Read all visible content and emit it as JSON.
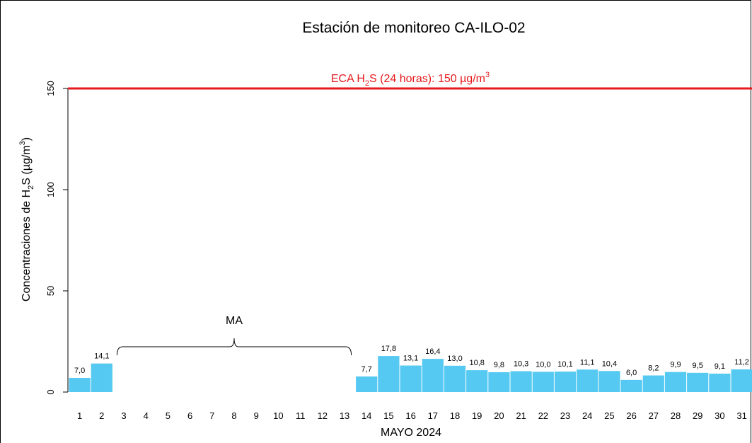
{
  "chart_data": {
    "type": "bar",
    "title": "Estación de monitoreo  CA-ILO-02",
    "x_label": "MAYO 2024",
    "y_label": [
      "Concentraciones de H",
      "2",
      "S (µg/m",
      "3",
      ")"
    ],
    "categories": [
      "1",
      "2",
      "3",
      "4",
      "5",
      "6",
      "7",
      "8",
      "9",
      "10",
      "11",
      "12",
      "13",
      "14",
      "15",
      "16",
      "17",
      "18",
      "19",
      "20",
      "21",
      "22",
      "23",
      "24",
      "25",
      "26",
      "27",
      "28",
      "29",
      "30",
      "31"
    ],
    "values": [
      7.0,
      14.1,
      null,
      null,
      null,
      null,
      null,
      null,
      null,
      null,
      null,
      null,
      null,
      7.7,
      17.8,
      13.1,
      16.4,
      13.0,
      10.8,
      9.8,
      10.3,
      10.0,
      10.1,
      11.1,
      10.4,
      6.0,
      8.2,
      9.9,
      9.5,
      9.1,
      11.2
    ],
    "value_labels": [
      "7,0",
      "14,1",
      null,
      null,
      null,
      null,
      null,
      null,
      null,
      null,
      null,
      null,
      null,
      "7,7",
      "17,8",
      "13,1",
      "16,4",
      "13,0",
      "10,8",
      "9,8",
      "10,3",
      "10,0",
      "10,1",
      "11,1",
      "10,4",
      "6,0",
      "8,2",
      "9,9",
      "9,5",
      "9,1",
      "11,2"
    ],
    "color": "#55c9f2",
    "ylim": [
      0,
      150
    ],
    "yticks": [
      0,
      50,
      100,
      150
    ],
    "reference_line": {
      "value": 150,
      "color": "#e41a1c",
      "label": [
        "ECA H",
        "2",
        "S (24 horas): 150 µg/m",
        "3"
      ]
    },
    "annotation": "MA"
  }
}
